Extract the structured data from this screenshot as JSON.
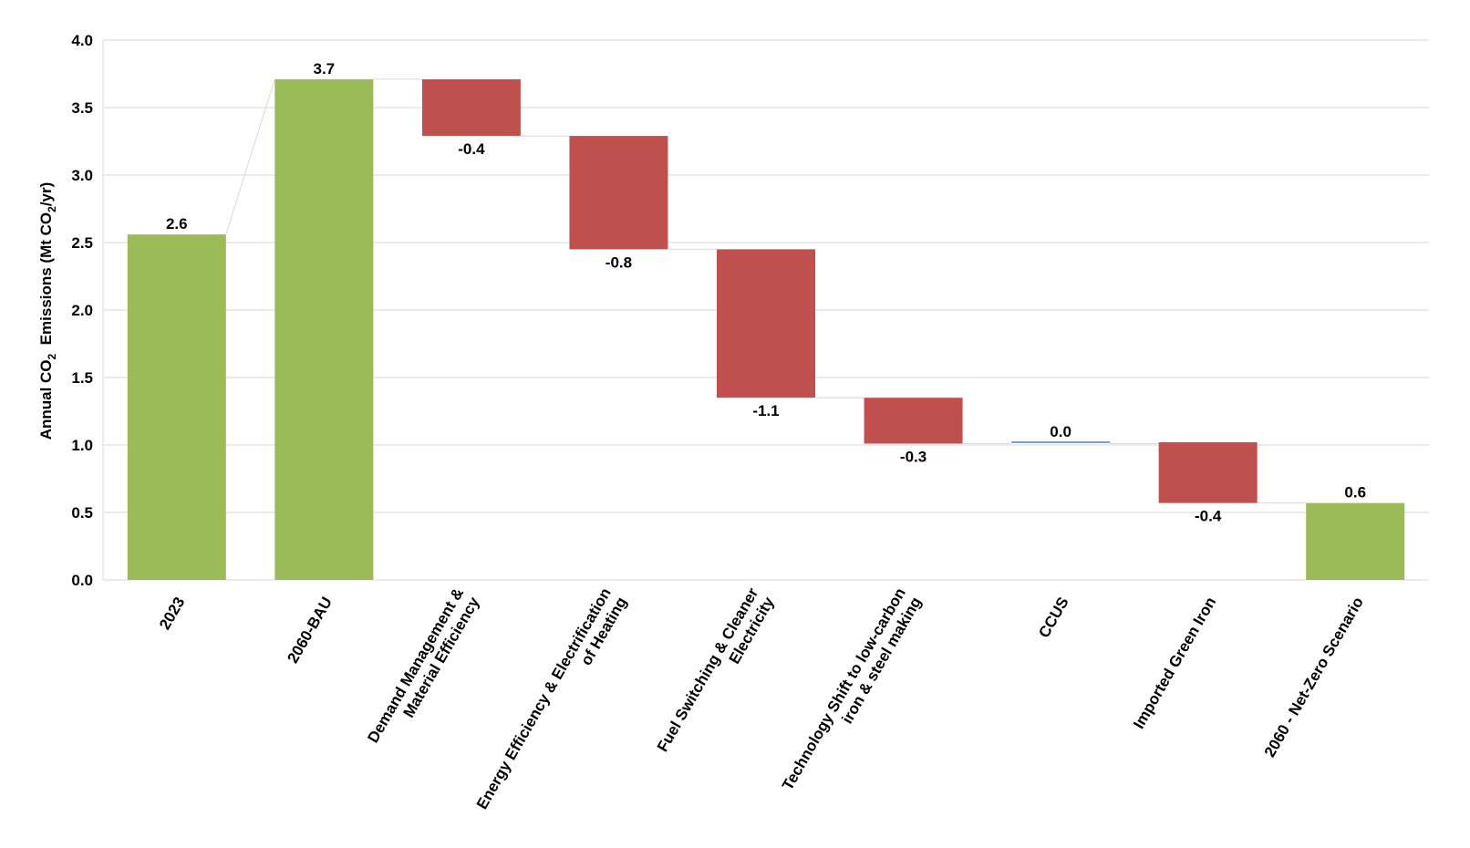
{
  "chart_data": {
    "type": "bar",
    "subtype": "waterfall",
    "title": "",
    "ylabel": {
      "pre": "Annual CO",
      "sub": "2",
      "mid": "  Emissions (Mt CO",
      "sub2": "2",
      "post": "/yr)"
    },
    "ylim": [
      0,
      4.0
    ],
    "yticks": [
      "0.0",
      "0.5",
      "1.0",
      "1.5",
      "2.0",
      "2.5",
      "3.0",
      "3.5",
      "4.0"
    ],
    "grid": true,
    "colors": {
      "total": "#9bbb59",
      "decrease": "#c0504d",
      "neutral": "#4f81bd",
      "grid": "#d9d9d9",
      "connector": "#d9d9d9"
    },
    "bars": [
      {
        "category": [
          "2023"
        ],
        "kind": "total",
        "base": 0,
        "top": 2.56,
        "label": "2.6"
      },
      {
        "category": [
          "2060-BAU"
        ],
        "kind": "total",
        "base": 0,
        "top": 3.71,
        "label": "3.7"
      },
      {
        "category": [
          "Demand Management &",
          "Material Efficiency"
        ],
        "kind": "decrease",
        "base": 3.29,
        "top": 3.71,
        "label": "-0.4"
      },
      {
        "category": [
          "Energy Efficiency & Electrification",
          "of Heating"
        ],
        "kind": "decrease",
        "base": 2.45,
        "top": 3.29,
        "label": "-0.8"
      },
      {
        "category": [
          "Fuel Switching & Cleaner",
          "Electricity"
        ],
        "kind": "decrease",
        "base": 1.35,
        "top": 2.45,
        "label": "-1.1"
      },
      {
        "category": [
          "Technology Shift to low-carbon",
          "iron & steel making"
        ],
        "kind": "decrease",
        "base": 1.01,
        "top": 1.35,
        "label": "-0.3"
      },
      {
        "category": [
          "CCUS"
        ],
        "kind": "neutral",
        "base": 1.01,
        "top": 1.02,
        "label": "0.0"
      },
      {
        "category": [
          "Imported Green Iron"
        ],
        "kind": "decrease",
        "base": 0.57,
        "top": 1.02,
        "label": "-0.4"
      },
      {
        "category": [
          "2060 - Net-Zero Scenario"
        ],
        "kind": "total",
        "base": 0,
        "top": 0.57,
        "label": "0.6"
      }
    ]
  }
}
